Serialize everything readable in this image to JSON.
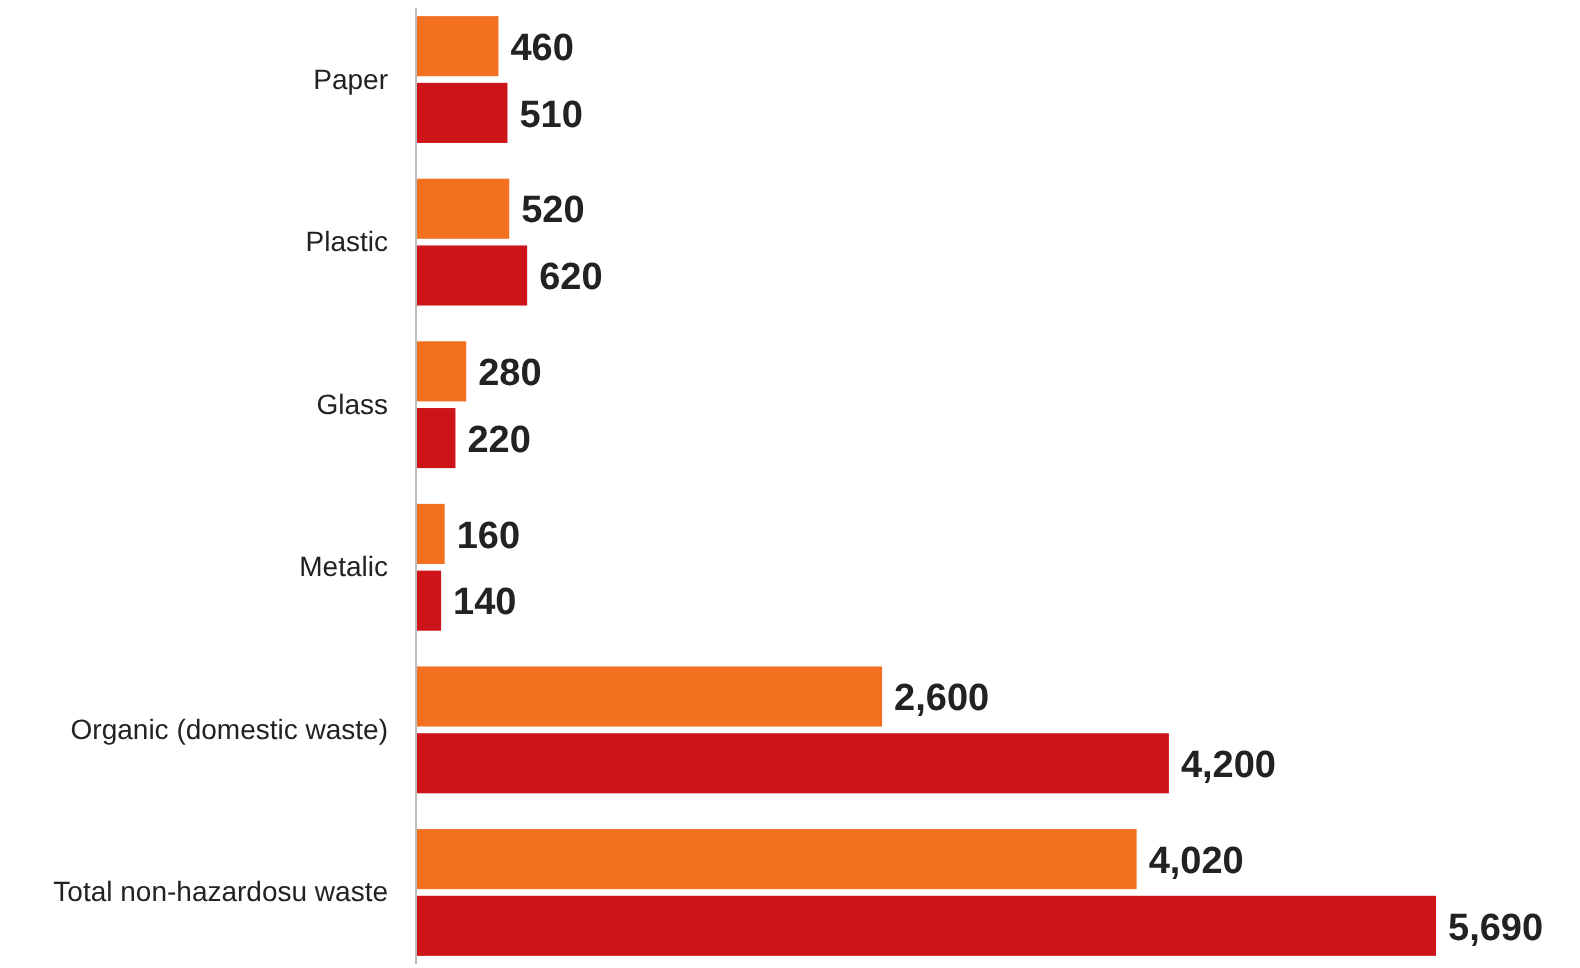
{
  "chart_data": {
    "type": "bar",
    "orientation": "horizontal",
    "categories": [
      "Paper",
      "Plastic",
      "Glass",
      "Metalic",
      "Organic (domestic waste)",
      "Total non-hazardosu waste"
    ],
    "series": [
      {
        "color": "#f37021",
        "values": [
          460,
          520,
          280,
          160,
          2600,
          4020
        ],
        "value_labels": [
          "460",
          "520",
          "280",
          "160",
          "2,600",
          "4,020"
        ]
      },
      {
        "color": "#cc1419",
        "values": [
          510,
          620,
          220,
          140,
          4200,
          5690
        ],
        "value_labels": [
          "510",
          "620",
          "220",
          "140",
          "4,200",
          "5,690"
        ]
      }
    ]
  }
}
